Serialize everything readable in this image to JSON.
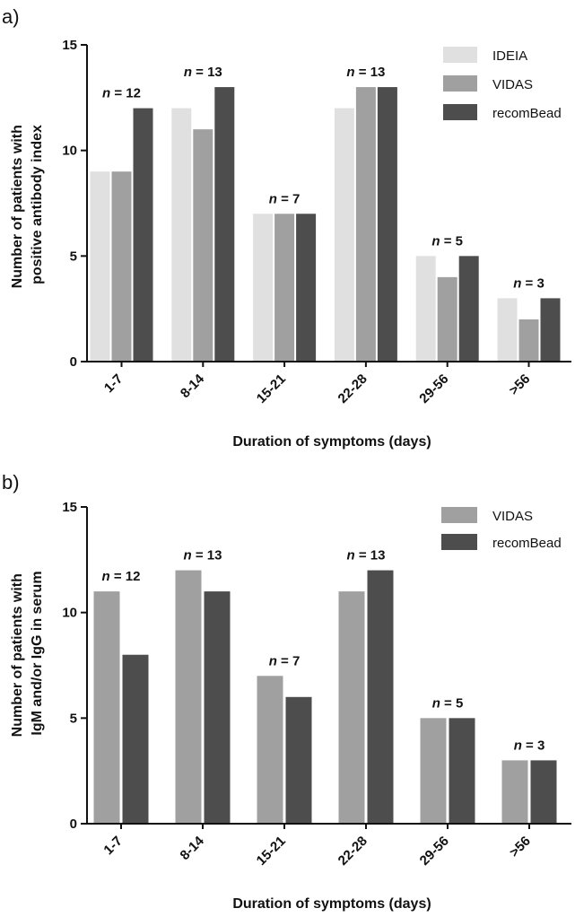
{
  "chart_data": [
    {
      "type": "bar",
      "panel_label": "a)",
      "categories": [
        "1-7",
        "8-14",
        "15-21",
        "22-28",
        "29-56",
        ">56"
      ],
      "series": [
        {
          "name": "IDEIA",
          "values": [
            9,
            12,
            7,
            12,
            5,
            3
          ],
          "color": "#e0e0e0"
        },
        {
          "name": "VIDAS",
          "values": [
            9,
            11,
            7,
            13,
            4,
            2
          ],
          "color": "#a0a0a0"
        },
        {
          "name": "recomBead",
          "values": [
            12,
            13,
            7,
            13,
            5,
            3
          ],
          "color": "#4d4d4d"
        }
      ],
      "annotations": [
        {
          "prefix": "n",
          "text": " = 12"
        },
        {
          "prefix": "n",
          "text": " = 13"
        },
        {
          "prefix": "n",
          "text": " = 7"
        },
        {
          "prefix": "n",
          "text": " = 13"
        },
        {
          "prefix": "n",
          "text": " = 5"
        },
        {
          "prefix": "n",
          "text": " = 3"
        }
      ],
      "ylabel": [
        "Number of patients with",
        "positive antibody index"
      ],
      "xlabel": "Duration of symptoms (days)",
      "ylim": [
        0,
        15
      ],
      "yticks": [
        "0",
        "5",
        "10",
        "15"
      ],
      "legend": "top-right",
      "grid": false
    },
    {
      "type": "bar",
      "panel_label": "b)",
      "categories": [
        "1-7",
        "8-14",
        "15-21",
        "22-28",
        "29-56",
        ">56"
      ],
      "series": [
        {
          "name": "VIDAS",
          "values": [
            11,
            12,
            7,
            11,
            5,
            3
          ],
          "color": "#a0a0a0"
        },
        {
          "name": "recomBead",
          "values": [
            8,
            11,
            6,
            12,
            5,
            3
          ],
          "color": "#4d4d4d"
        }
      ],
      "annotations": [
        {
          "prefix": "n",
          "text": " = 12"
        },
        {
          "prefix": "n",
          "text": " = 13"
        },
        {
          "prefix": "n",
          "text": " = 7"
        },
        {
          "prefix": "n",
          "text": " = 13"
        },
        {
          "prefix": "n",
          "text": " = 5"
        },
        {
          "prefix": "n",
          "text": " = 3"
        }
      ],
      "ylabel": [
        "Number of patients with",
        "IgM and/or IgG in serum"
      ],
      "xlabel": "Duration of symptoms (days)",
      "ylim": [
        0,
        15
      ],
      "yticks": [
        "0",
        "5",
        "10",
        "15"
      ],
      "legend": "top-right",
      "grid": false
    }
  ]
}
